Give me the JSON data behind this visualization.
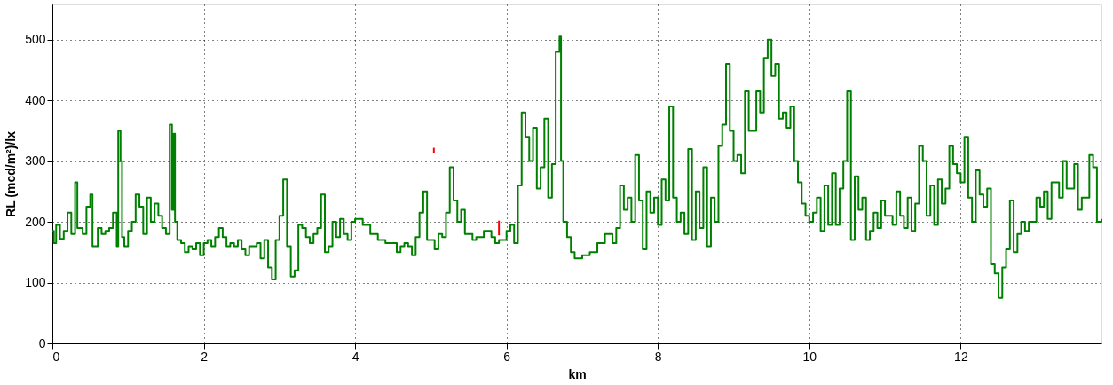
{
  "chart_data": {
    "type": "step",
    "xlabel": "km",
    "ylabel": "RL (mcd/m²)/lx",
    "xlim": [
      0,
      13.86
    ],
    "ylim": [
      0,
      558
    ],
    "xticks": [
      0,
      2,
      4,
      6,
      8,
      10,
      12
    ],
    "yticks": [
      0,
      100,
      200,
      300,
      400,
      500
    ],
    "grid": true,
    "series": [
      {
        "color": "#008000",
        "x": [
          0,
          0.02,
          0.05,
          0.1,
          0.15,
          0.2,
          0.25,
          0.3,
          0.33,
          0.4,
          0.45,
          0.5,
          0.53,
          0.6,
          0.65,
          0.7,
          0.75,
          0.8,
          0.85,
          0.87,
          0.9,
          0.92,
          0.95,
          1.0,
          1.05,
          1.1,
          1.15,
          1.2,
          1.25,
          1.3,
          1.35,
          1.4,
          1.45,
          1.5,
          1.55,
          1.58,
          1.6,
          1.62,
          1.65,
          1.7,
          1.75,
          1.8,
          1.85,
          1.9,
          1.95,
          2.0,
          2.05,
          2.1,
          2.15,
          2.2,
          2.25,
          2.3,
          2.35,
          2.4,
          2.45,
          2.5,
          2.55,
          2.6,
          2.7,
          2.75,
          2.8,
          2.85,
          2.9,
          2.95,
          3.0,
          3.05,
          3.1,
          3.15,
          3.2,
          3.25,
          3.3,
          3.35,
          3.4,
          3.45,
          3.5,
          3.55,
          3.6,
          3.65,
          3.7,
          3.75,
          3.8,
          3.85,
          3.9,
          3.95,
          4.0,
          4.1,
          4.2,
          4.3,
          4.4,
          4.5,
          4.55,
          4.6,
          4.65,
          4.7,
          4.75,
          4.8,
          4.85,
          4.9,
          4.95,
          5.0,
          5.05,
          5.1,
          5.15,
          5.2,
          5.25,
          5.3,
          5.35,
          5.4,
          5.45,
          5.5,
          5.55,
          5.6,
          5.7,
          5.8,
          5.85,
          5.9,
          6.0,
          6.05,
          6.1,
          6.15,
          6.2,
          6.25,
          6.3,
          6.35,
          6.4,
          6.45,
          6.5,
          6.55,
          6.6,
          6.65,
          6.7,
          6.72,
          6.75,
          6.8,
          6.85,
          6.9,
          7.0,
          7.1,
          7.2,
          7.3,
          7.4,
          7.45,
          7.5,
          7.55,
          7.6,
          7.65,
          7.7,
          7.75,
          7.8,
          7.85,
          7.9,
          7.95,
          8.0,
          8.05,
          8.1,
          8.15,
          8.2,
          8.25,
          8.3,
          8.35,
          8.4,
          8.45,
          8.5,
          8.55,
          8.6,
          8.65,
          8.7,
          8.75,
          8.8,
          8.85,
          8.9,
          8.95,
          9.0,
          9.05,
          9.1,
          9.15,
          9.2,
          9.25,
          9.3,
          9.35,
          9.4,
          9.45,
          9.5,
          9.55,
          9.6,
          9.65,
          9.7,
          9.75,
          9.8,
          9.85,
          9.9,
          9.95,
          10.0,
          10.05,
          10.1,
          10.15,
          10.2,
          10.25,
          10.3,
          10.35,
          10.4,
          10.45,
          10.5,
          10.55,
          10.6,
          10.65,
          10.7,
          10.75,
          10.8,
          10.85,
          10.9,
          10.95,
          11.0,
          11.1,
          11.15,
          11.2,
          11.25,
          11.3,
          11.35,
          11.4,
          11.45,
          11.5,
          11.55,
          11.6,
          11.65,
          11.7,
          11.75,
          11.8,
          11.85,
          11.9,
          11.95,
          12.0,
          12.05,
          12.1,
          12.15,
          12.2,
          12.25,
          12.3,
          12.35,
          12.4,
          12.45,
          12.5,
          12.55,
          12.6,
          12.65,
          12.7,
          12.75,
          12.8,
          12.85,
          12.9,
          13.0,
          13.05,
          13.1,
          13.15,
          13.2,
          13.3,
          13.35,
          13.4,
          13.5,
          13.55,
          13.6,
          13.7,
          13.75,
          13.8,
          13.86
        ],
        "values": [
          185,
          165,
          195,
          172,
          185,
          215,
          180,
          265,
          190,
          180,
          225,
          245,
          160,
          190,
          180,
          185,
          190,
          215,
          160,
          350,
          300,
          175,
          160,
          185,
          200,
          245,
          225,
          180,
          240,
          200,
          230,
          210,
          190,
          180,
          360,
          220,
          345,
          200,
          170,
          165,
          150,
          160,
          155,
          165,
          145,
          165,
          170,
          160,
          175,
          190,
          175,
          160,
          165,
          160,
          170,
          155,
          145,
          160,
          165,
          140,
          170,
          125,
          105,
          170,
          210,
          270,
          160,
          110,
          120,
          195,
          190,
          175,
          165,
          180,
          190,
          245,
          150,
          160,
          200,
          175,
          205,
          180,
          170,
          200,
          205,
          195,
          180,
          170,
          165,
          165,
          150,
          160,
          165,
          160,
          145,
          175,
          215,
          250,
          170,
          170,
          155,
          180,
          175,
          215,
          290,
          235,
          200,
          220,
          180,
          180,
          170,
          175,
          185,
          175,
          165,
          170,
          185,
          195,
          165,
          260,
          380,
          340,
          300,
          355,
          255,
          290,
          370,
          240,
          295,
          480,
          505,
          300,
          200,
          175,
          150,
          140,
          145,
          150,
          165,
          180,
          165,
          190,
          260,
          220,
          240,
          200,
          310,
          235,
          155,
          250,
          215,
          240,
          195,
          270,
          235,
          390,
          240,
          200,
          215,
          180,
          320,
          170,
          250,
          190,
          290,
          160,
          240,
          200,
          325,
          360,
          460,
          350,
          300,
          310,
          280,
          415,
          350,
          350,
          415,
          380,
          470,
          500,
          440,
          460,
          370,
          380,
          355,
          390,
          300,
          265,
          230,
          210,
          200,
          215,
          240,
          185,
          260,
          195,
          280,
          195,
          255,
          300,
          415,
          170,
          275,
          220,
          240,
          170,
          185,
          215,
          190,
          235,
          210,
          195,
          250,
          210,
          190,
          240,
          185,
          230,
          325,
          300,
          210,
          260,
          195,
          270,
          230,
          255,
          325,
          295,
          280,
          265,
          340,
          240,
          200,
          285,
          245,
          225,
          255,
          130,
          115,
          75,
          125,
          155,
          235,
          150,
          180,
          200,
          185,
          200,
          240,
          225,
          250,
          205,
          265,
          240,
          300,
          255,
          295,
          220,
          240,
          310,
          290,
          200,
          205
        ]
      },
      {
        "color": "#ff0000",
        "type": "line",
        "x": [
          5.04,
          5.04,
          5.5,
          5.9,
          5.9
        ],
        "values": [
          314,
          322,
          null,
          178,
          202
        ]
      }
    ]
  }
}
